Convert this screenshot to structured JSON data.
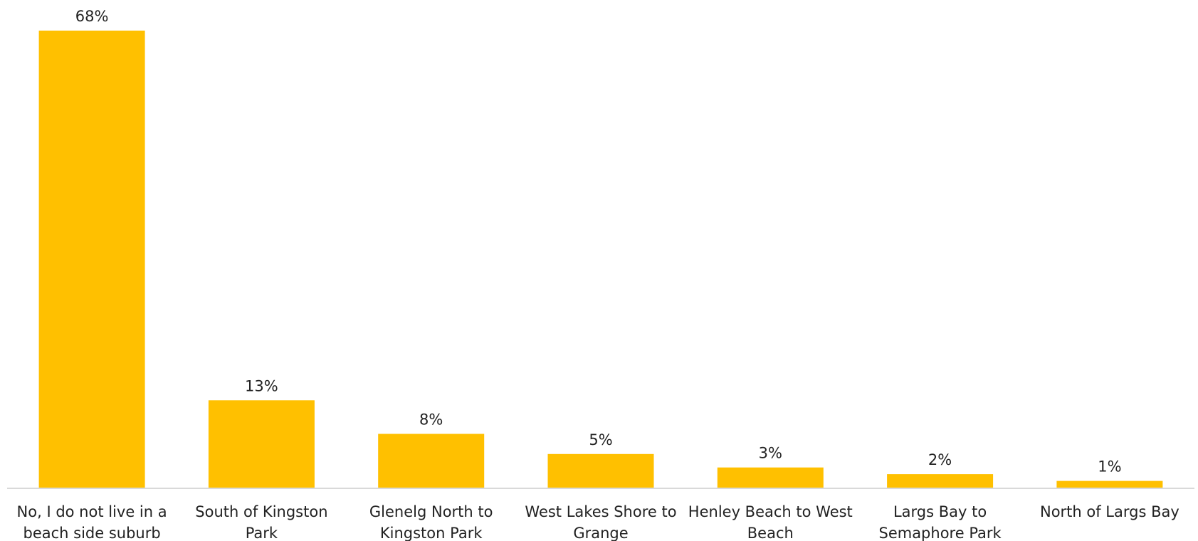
{
  "chart_data": {
    "type": "bar",
    "title": "",
    "xlabel": "",
    "ylabel": "",
    "categories": [
      [
        "No, I do not live in a",
        "beach side suburb"
      ],
      [
        "South of Kingston",
        "Park"
      ],
      [
        "Glenelg North to",
        "Kingston Park"
      ],
      [
        "West Lakes Shore to",
        "Grange"
      ],
      [
        "Henley Beach to West",
        "Beach"
      ],
      [
        "Largs Bay to",
        "Semaphore Park"
      ],
      [
        "North of Largs Bay"
      ]
    ],
    "values": [
      68,
      13,
      8,
      5,
      3,
      2,
      1
    ],
    "value_labels": [
      "68%",
      "13%",
      "8%",
      "5%",
      "3%",
      "2%",
      "1%"
    ],
    "ylim": [
      0,
      68
    ],
    "grid": false,
    "legend": "none",
    "colors": {
      "bar": "#FFC000",
      "axis": "#D9D9D9",
      "text": "#222222"
    }
  }
}
